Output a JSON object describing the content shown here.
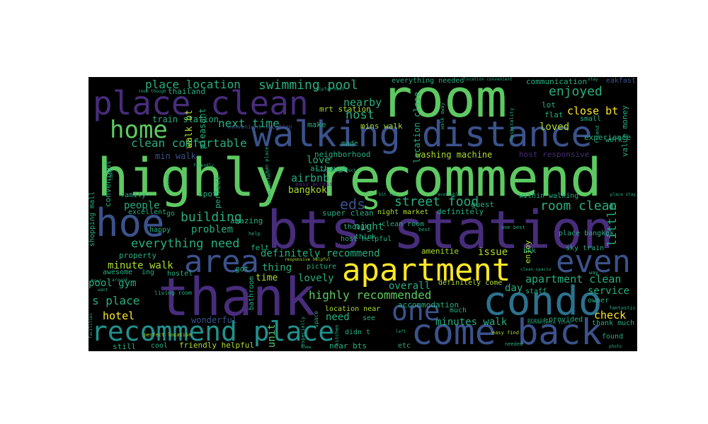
{
  "palette": {
    "purple": "#472d7b",
    "indigo": "#3b528b",
    "blue": "#2c728e",
    "teal": "#21918c",
    "green": "#28ae80",
    "lime": "#5ec962",
    "yellow": "#addc30",
    "gold": "#fde725"
  },
  "words": {
    "highly_recommend": "highly recommend",
    "room": "room",
    "bts_station": "bts station",
    "thank": "thank",
    "walking_distance": "walking distance",
    "place_clean": "place clean",
    "condo": "condo",
    "come_back": "come back",
    "recommend_place": "recommend place",
    "apartment": "apartment",
    "hoe": "hoe",
    "home": "home",
    "area": "area",
    "even": "even",
    "s": "s",
    "one": "one",
    "eds": "eds",
    "place_location": "place location",
    "swimming_pool": "swimming pool",
    "enjoyed": "enjoyed",
    "nearby": "nearby",
    "close_bt": "close bt",
    "host": "host",
    "clean_comfortable": "clean comfortable",
    "next_time": "next time",
    "loved": "loved",
    "walk_bt": "walk bt",
    "train_station": "train station",
    "mrt_station": "mrt station",
    "mins_walk": "mins walk",
    "street_food": "street food",
    "room_clean": "room clean",
    "airbnb": "airbnb",
    "bangkok": "bangkok",
    "love": "love",
    "building": "building",
    "people": "people",
    "problem": "problem",
    "everything_need": "everything need",
    "night": "night",
    "little": "little",
    "definitely_recommend": "definitely recommend",
    "issue": "issue",
    "minute_walk": "minute walk",
    "thing": "thing",
    "time": "time",
    "lovely": "lovely",
    "overall": "overall",
    "apartment_clean": "apartment clean",
    "pool_gym": "pool gym",
    "s_place": "s place",
    "highly_recommended": "highly recommended",
    "day": "day",
    "service": "service",
    "check": "check",
    "hotel": "hotel",
    "need": "need",
    "minutes_walk": "minutes walk",
    "unit": "unit",
    "accommodation": "accommodation",
    "friendly_helpful": "friendly helpful",
    "wonderful": "wonderful",
    "washing_machine": "washing machine",
    "communication": "communication",
    "experience": "experience",
    "host_responsive": "host responsive",
    "min_walk": "min walk",
    "convenient": "convenient",
    "shopping_mall": "shopping mall",
    "neighborhood": "neighborhood",
    "pleasant": "pleasant",
    "thailand": "thailand",
    "everything_needed": "everything needed",
    "location_close": "location close",
    "flat": "flat",
    "lot": "lot",
    "small": "small",
    "value_money": "value money",
    "work": "work",
    "eakfast": "eakfast",
    "although": "although",
    "make": "make",
    "amazing": "amazing",
    "perfect": "perfect",
    "spot": "spot",
    "family": "family",
    "excellent": "excellent",
    "go": "go",
    "happy": "happy",
    "got": "got",
    "property": "property",
    "awesome": "awesome",
    "ing": "ing",
    "hostel": "hostel",
    "bathroom": "bathroom",
    "felt": "felt",
    "amenitie": "amenitie",
    "bkk": "bkk",
    "sky_train": "sky train",
    "place_bangkok": "place bangkok",
    "within_walking": "within walking",
    "guest": "guest",
    "definitely": "definitely",
    "super_clean": "super clean",
    "night_market": "night market",
    "host_helpful": "host helpful",
    "picture": "picture",
    "definitely_come": "definitely come",
    "staff": "staff",
    "owner": "owner",
    "provided": "provided",
    "thank_much": "thank much",
    "found": "found",
    "location_near": "location near",
    "much": "much",
    "see": "see",
    "didn_t": "didn t",
    "near_bts": "near bts",
    "etc": "etc",
    "cool": "cool",
    "still": "still",
    "living_room": "living room",
    "perfect_location": "perfect location",
    "easy_access": "easy access",
    "clean_room": "clean room",
    "think": "think",
    "made": "made",
    "though": "though",
    "enjoy": "enjoy",
    "take": "take",
    "fantastic": "fantastic",
    "help": "help",
    "best": "best",
    "friend": "friend",
    "easy_find": "easy find",
    "one_best": "one best",
    "provide": "provide",
    "way": "way",
    "needed": "needed",
    "clean_spacio": "clean spacio",
    "hospitality": "hospitality",
    "location_convenient": "location convenient",
    "available": "available",
    "responsive_helpful": "responsive helpful",
    "location_perfect": "location perfect",
    "helpful_host": "helpful host",
    "room_though": "room though",
    "convenient_location": "convenient location",
    "walk_away": "walk away",
    "clean_place": "clean place",
    "especially": "especially",
    "space": "space",
    "hour": "hour",
    "around": "around",
    "want": "want",
    "facilities": "facilities",
    "bit_far": "bit far",
    "kitchen": "kitchen",
    "knew": "knew",
    "photo": "photo",
    "left": "left",
    "friendly": "friendly",
    "place_perfect": "place perfect",
    "stay": "stay",
    "arrived": "arrived",
    "convenience_store": "convenience store",
    "place_stay": "place stay"
  }
}
